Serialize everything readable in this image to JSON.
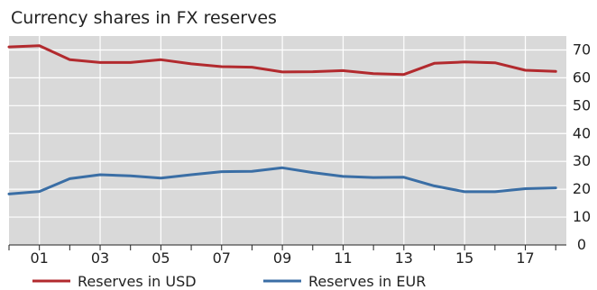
{
  "chart_data": {
    "type": "line",
    "title": "Currency shares in FX reserves",
    "xlabel": "",
    "ylabel": "",
    "x": [
      2000,
      2001,
      2002,
      2003,
      2004,
      2005,
      2006,
      2007,
      2008,
      2009,
      2010,
      2011,
      2012,
      2013,
      2014,
      2015,
      2016,
      2017,
      2018
    ],
    "x_ticks": [
      2001,
      2003,
      2005,
      2007,
      2009,
      2011,
      2013,
      2015,
      2017
    ],
    "x_tick_labels": [
      "01",
      "03",
      "05",
      "07",
      "09",
      "11",
      "13",
      "15",
      "17"
    ],
    "xlim": [
      2000,
      2018.35
    ],
    "ylim": [
      0,
      75
    ],
    "y_ticks": [
      0,
      10,
      20,
      30,
      40,
      50,
      60,
      70
    ],
    "y_axis_side": "right",
    "grid": true,
    "legend_position": "bottom",
    "series": [
      {
        "name": "Reserves in USD",
        "color": "#b22a2e",
        "values": [
          71.1,
          71.5,
          66.5,
          65.5,
          65.5,
          66.5,
          65.0,
          64.0,
          63.8,
          62.1,
          62.2,
          62.6,
          61.5,
          61.2,
          65.2,
          65.7,
          65.4,
          62.7,
          62.3
        ]
      },
      {
        "name": "Reserves in EUR",
        "color": "#3a6ea5",
        "values": [
          18.3,
          19.2,
          23.8,
          25.2,
          24.8,
          24.0,
          25.2,
          26.3,
          26.4,
          27.7,
          26.0,
          24.6,
          24.2,
          24.3,
          21.2,
          19.1,
          19.1,
          20.2,
          20.5
        ]
      }
    ]
  }
}
